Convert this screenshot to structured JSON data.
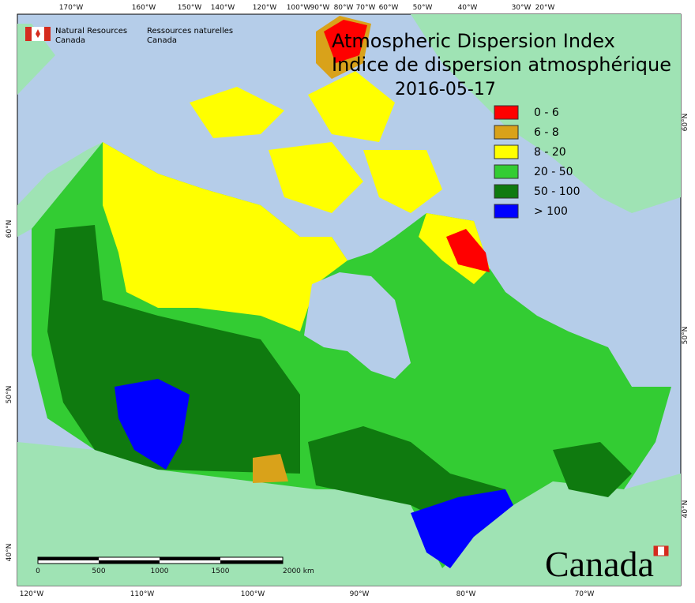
{
  "header": {
    "org_en": [
      "Natural Resources",
      "Canada"
    ],
    "org_fr": [
      "Ressources naturelles",
      "Canada"
    ],
    "title_en": "Atmospheric Dispersion Index",
    "title_fr": "Indice de dispersion atmosphérique",
    "date": "2016-05-17"
  },
  "legend": [
    {
      "label": "0 - 6",
      "color": "#ff0000"
    },
    {
      "label": "6 - 8",
      "color": "#d9a21a"
    },
    {
      "label": "8 - 20",
      "color": "#ffff00"
    },
    {
      "label": "20 - 50",
      "color": "#33cc33"
    },
    {
      "label": "50 - 100",
      "color": "#0f7a0f"
    },
    {
      "label": "> 100",
      "color": "#0000ff"
    }
  ],
  "top_labels": [
    "170°W",
    "160°W",
    "150°W",
    "140°W",
    "120°W",
    "100°W",
    "90°W",
    "80°W",
    "70°W",
    "60°W",
    "50°W",
    "40°W",
    "30°W",
    "20°W"
  ],
  "bottom_labels": [
    "120°W",
    "110°W",
    "100°W",
    "90°W",
    "80°W",
    "70°W"
  ],
  "left_labels": [
    "60°N",
    "50°N",
    "40°N"
  ],
  "right_labels": [
    "60°N",
    "50°N",
    "40°N"
  ],
  "scale_bar": [
    "0",
    "500",
    "1000",
    "1500",
    "2000 km"
  ],
  "wordmark": "Canada"
}
